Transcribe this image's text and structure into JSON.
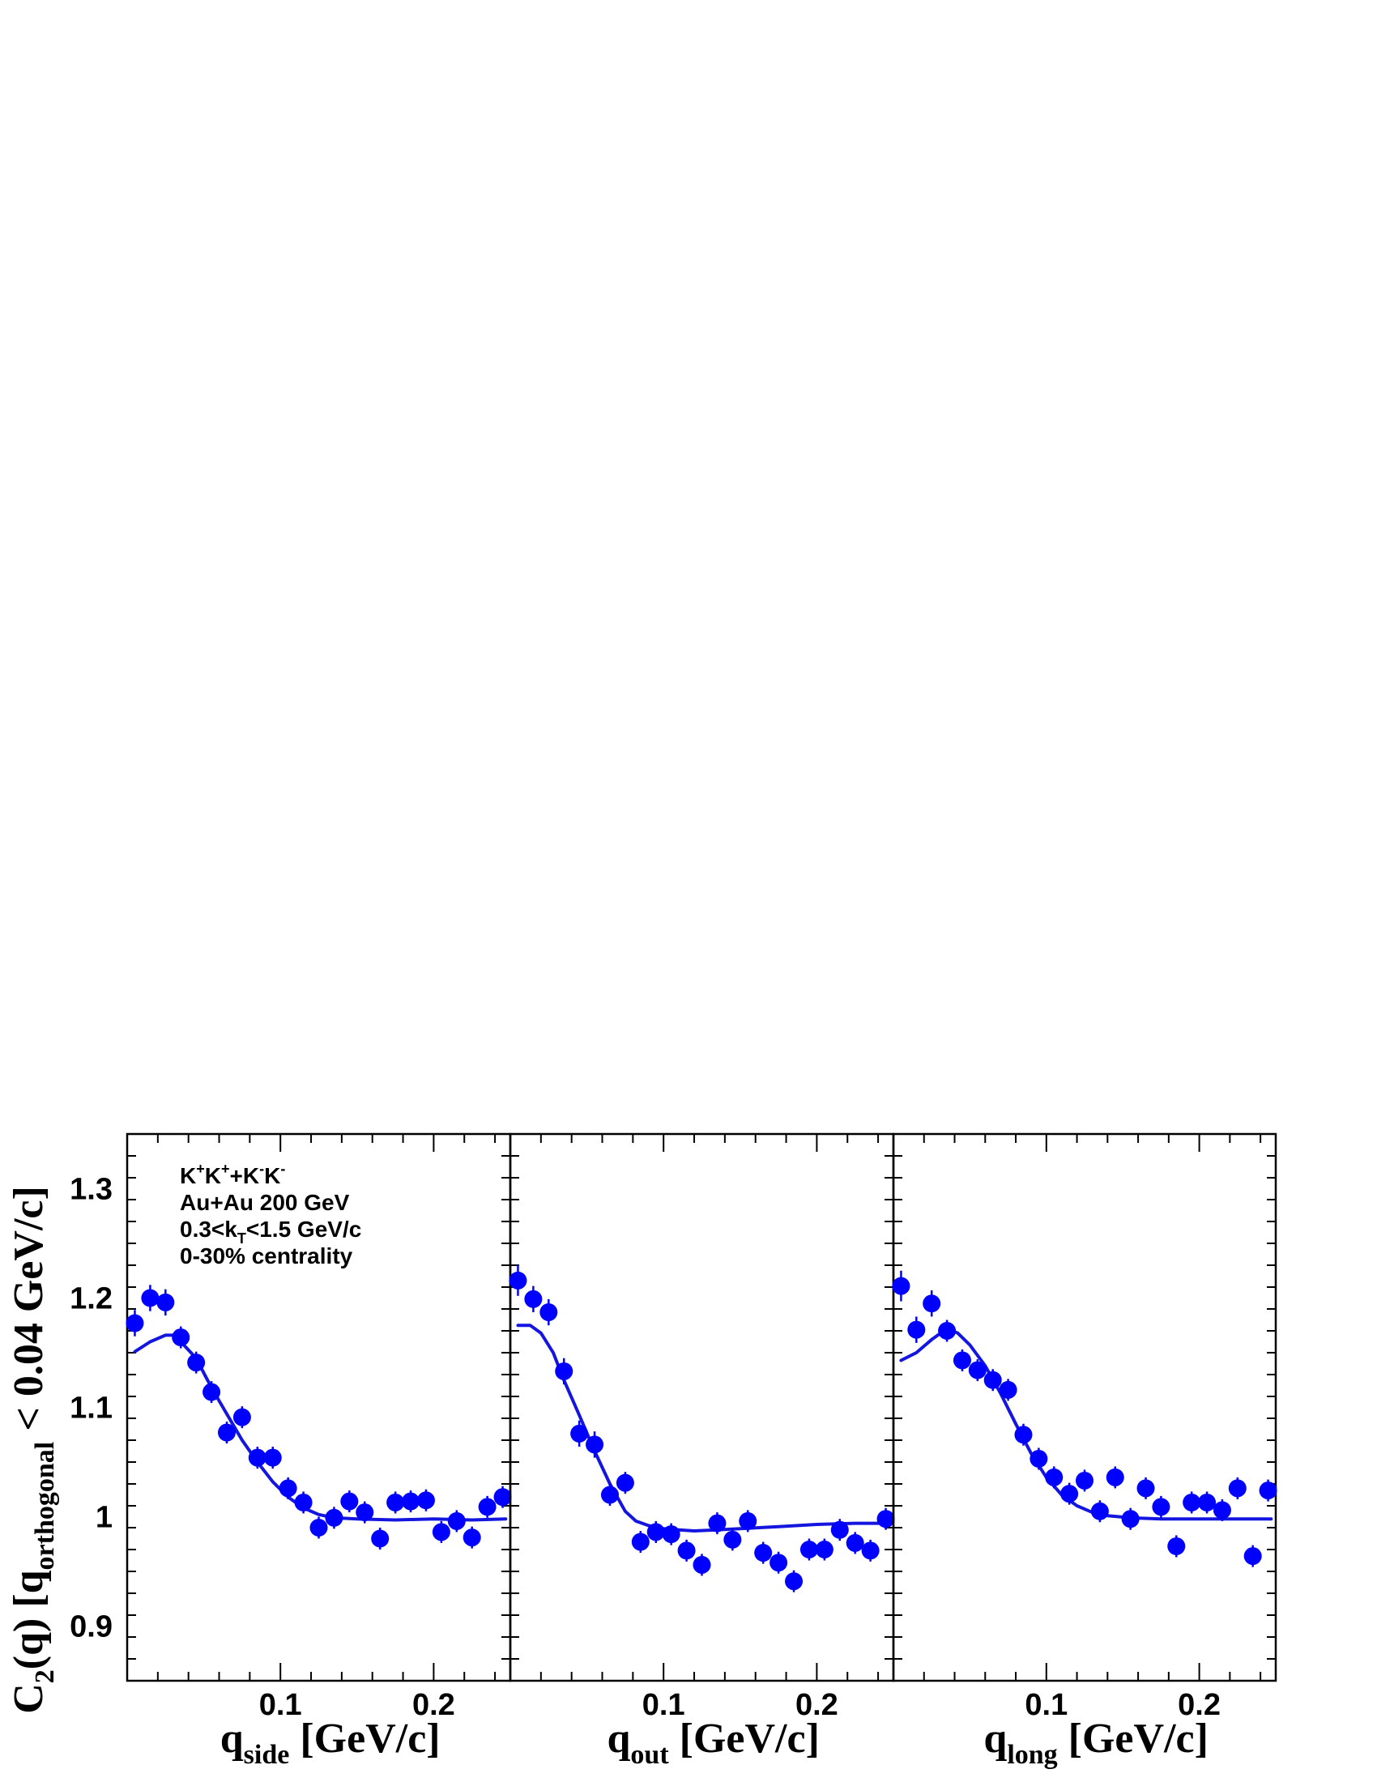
{
  "chart_data": {
    "type": "scatter",
    "ylabel": {
      "main": "C",
      "sub1": "2",
      "mid": "(q) [q",
      "sub2": "orthogonal",
      "tail": " < 0.04 GeV/c]"
    },
    "ylim": [
      0.85,
      1.35
    ],
    "y_ticks": [
      {
        "value": 0.9,
        "label": "0.9"
      },
      {
        "value": 1.0,
        "label": "1"
      },
      {
        "value": 1.1,
        "label": "1.1"
      },
      {
        "value": 1.2,
        "label": "1.2"
      },
      {
        "value": 1.3,
        "label": "1.3"
      }
    ],
    "xlim": [
      0.0,
      0.25
    ],
    "x_ticks": [
      {
        "value": 0.1,
        "label": "0.1"
      },
      {
        "value": 0.2,
        "label": "0.2"
      }
    ],
    "legend_lines": [
      "K⁺K⁺+K⁻K⁻",
      "Au+Au 200 GeV",
      "0.3<kₜ<1.5 GeV/c",
      "0-30% centrality"
    ],
    "legend_text": {
      "line1": [
        "K",
        "+",
        "K",
        "+",
        "+K",
        "-",
        "K",
        "-"
      ],
      "line2": "Au+Au 200 GeV",
      "line3": [
        "0.3<k",
        "T",
        "<1.5 GeV/c"
      ],
      "line4": "0-30% centrality"
    },
    "marker_color": "#0000ff",
    "fit_color": "#1515e0",
    "panels": [
      {
        "id": "side",
        "xlabel": {
          "q": "q",
          "sub": "side",
          "unit": " [GeV/c]"
        },
        "points": [
          [
            0.005,
            1.177,
            0.012
          ],
          [
            0.015,
            1.2,
            0.012
          ],
          [
            0.025,
            1.196,
            0.012
          ],
          [
            0.035,
            1.164,
            0.01
          ],
          [
            0.045,
            1.141,
            0.01
          ],
          [
            0.055,
            1.114,
            0.01
          ],
          [
            0.065,
            1.077,
            0.01
          ],
          [
            0.075,
            1.091,
            0.01
          ],
          [
            0.085,
            1.054,
            0.01
          ],
          [
            0.095,
            1.054,
            0.01
          ],
          [
            0.105,
            1.026,
            0.01
          ],
          [
            0.115,
            1.013,
            0.01
          ],
          [
            0.125,
            0.99,
            0.01
          ],
          [
            0.135,
            0.999,
            0.01
          ],
          [
            0.145,
            1.014,
            0.01
          ],
          [
            0.155,
            1.004,
            0.01
          ],
          [
            0.165,
            0.98,
            0.01
          ],
          [
            0.175,
            1.013,
            0.01
          ],
          [
            0.185,
            1.014,
            0.01
          ],
          [
            0.195,
            1.015,
            0.01
          ],
          [
            0.205,
            0.986,
            0.01
          ],
          [
            0.215,
            0.996,
            0.01
          ],
          [
            0.225,
            0.981,
            0.01
          ],
          [
            0.235,
            1.009,
            0.01
          ],
          [
            0.245,
            1.018,
            0.01
          ]
        ],
        "fit": [
          [
            0.005,
            1.151
          ],
          [
            0.015,
            1.16
          ],
          [
            0.025,
            1.166
          ],
          [
            0.03,
            1.166
          ],
          [
            0.035,
            1.16
          ],
          [
            0.045,
            1.145
          ],
          [
            0.055,
            1.118
          ],
          [
            0.065,
            1.094
          ],
          [
            0.075,
            1.07
          ],
          [
            0.085,
            1.05
          ],
          [
            0.095,
            1.032
          ],
          [
            0.105,
            1.018
          ],
          [
            0.115,
            1.008
          ],
          [
            0.125,
            1.002
          ],
          [
            0.135,
            0.999
          ],
          [
            0.15,
            0.998
          ],
          [
            0.175,
            0.997
          ],
          [
            0.2,
            0.998
          ],
          [
            0.225,
            0.997
          ],
          [
            0.247,
            0.998
          ]
        ]
      },
      {
        "id": "out",
        "xlabel": {
          "q": "q",
          "sub": "out",
          "unit": " [GeV/c]"
        },
        "points": [
          [
            0.005,
            1.216,
            0.014
          ],
          [
            0.015,
            1.199,
            0.012
          ],
          [
            0.025,
            1.187,
            0.012
          ],
          [
            0.035,
            1.133,
            0.012
          ],
          [
            0.045,
            1.076,
            0.012
          ],
          [
            0.055,
            1.066,
            0.012
          ],
          [
            0.065,
            1.02,
            0.01
          ],
          [
            0.075,
            1.031,
            0.01
          ],
          [
            0.085,
            0.977,
            0.01
          ],
          [
            0.095,
            0.986,
            0.01
          ],
          [
            0.105,
            0.984,
            0.01
          ],
          [
            0.115,
            0.969,
            0.01
          ],
          [
            0.125,
            0.956,
            0.01
          ],
          [
            0.135,
            0.994,
            0.01
          ],
          [
            0.145,
            0.979,
            0.01
          ],
          [
            0.155,
            0.996,
            0.01
          ],
          [
            0.165,
            0.967,
            0.01
          ],
          [
            0.175,
            0.958,
            0.01
          ],
          [
            0.185,
            0.941,
            0.01
          ],
          [
            0.195,
            0.97,
            0.01
          ],
          [
            0.205,
            0.97,
            0.01
          ],
          [
            0.215,
            0.988,
            0.01
          ],
          [
            0.225,
            0.976,
            0.01
          ],
          [
            0.235,
            0.969,
            0.01
          ],
          [
            0.245,
            0.998,
            0.01
          ]
        ],
        "fit": [
          [
            0.005,
            1.175
          ],
          [
            0.013,
            1.175
          ],
          [
            0.02,
            1.168
          ],
          [
            0.028,
            1.15
          ],
          [
            0.035,
            1.125
          ],
          [
            0.045,
            1.093
          ],
          [
            0.055,
            1.06
          ],
          [
            0.065,
            1.03
          ],
          [
            0.075,
            1.005
          ],
          [
            0.082,
            0.996
          ],
          [
            0.09,
            0.992
          ],
          [
            0.1,
            0.989
          ],
          [
            0.11,
            0.988
          ],
          [
            0.12,
            0.987
          ],
          [
            0.135,
            0.988
          ],
          [
            0.15,
            0.989
          ],
          [
            0.175,
            0.991
          ],
          [
            0.2,
            0.993
          ],
          [
            0.225,
            0.994
          ],
          [
            0.247,
            0.994
          ]
        ]
      },
      {
        "id": "long",
        "xlabel": {
          "q": "q",
          "sub": "long",
          "unit": " [GeV/c]"
        },
        "points": [
          [
            0.005,
            1.211,
            0.014
          ],
          [
            0.015,
            1.171,
            0.012
          ],
          [
            0.025,
            1.195,
            0.012
          ],
          [
            0.035,
            1.17,
            0.01
          ],
          [
            0.045,
            1.143,
            0.01
          ],
          [
            0.055,
            1.134,
            0.01
          ],
          [
            0.065,
            1.125,
            0.01
          ],
          [
            0.075,
            1.116,
            0.01
          ],
          [
            0.085,
            1.075,
            0.01
          ],
          [
            0.095,
            1.053,
            0.01
          ],
          [
            0.105,
            1.036,
            0.01
          ],
          [
            0.115,
            1.021,
            0.01
          ],
          [
            0.125,
            1.033,
            0.01
          ],
          [
            0.135,
            1.005,
            0.01
          ],
          [
            0.145,
            1.036,
            0.01
          ],
          [
            0.155,
            0.998,
            0.01
          ],
          [
            0.165,
            1.026,
            0.01
          ],
          [
            0.175,
            1.009,
            0.01
          ],
          [
            0.185,
            0.973,
            0.01
          ],
          [
            0.195,
            1.013,
            0.01
          ],
          [
            0.205,
            1.013,
            0.01
          ],
          [
            0.215,
            1.006,
            0.01
          ],
          [
            0.225,
            1.026,
            0.01
          ],
          [
            0.235,
            0.964,
            0.01
          ],
          [
            0.245,
            1.024,
            0.01
          ]
        ],
        "fit": [
          [
            0.005,
            1.143
          ],
          [
            0.015,
            1.15
          ],
          [
            0.025,
            1.162
          ],
          [
            0.035,
            1.172
          ],
          [
            0.042,
            1.168
          ],
          [
            0.05,
            1.157
          ],
          [
            0.06,
            1.138
          ],
          [
            0.07,
            1.113
          ],
          [
            0.08,
            1.085
          ],
          [
            0.09,
            1.058
          ],
          [
            0.1,
            1.036
          ],
          [
            0.11,
            1.02
          ],
          [
            0.12,
            1.01
          ],
          [
            0.13,
            1.004
          ],
          [
            0.14,
            1.001
          ],
          [
            0.155,
            0.999
          ],
          [
            0.175,
            0.998
          ],
          [
            0.2,
            0.998
          ],
          [
            0.225,
            0.998
          ],
          [
            0.247,
            0.998
          ]
        ]
      }
    ]
  }
}
